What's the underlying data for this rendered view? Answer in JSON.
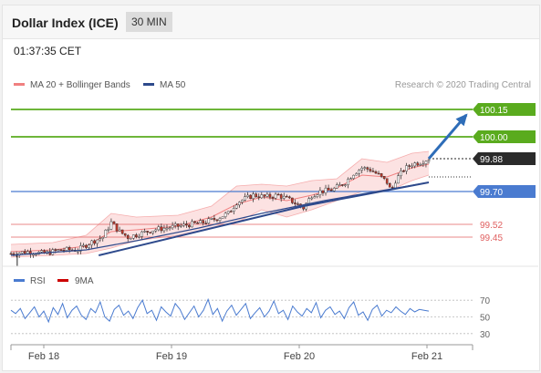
{
  "header": {
    "title": "Dollar Index (ICE)",
    "timeframe": "30 MIN"
  },
  "timestamp": "01:37:35 CET",
  "legend": {
    "ma_bb": "MA 20 + Bollinger Bands",
    "ma50": "MA 50"
  },
  "credit": "Research © 2020 Trading Central",
  "rsi_legend": {
    "rsi": "RSI",
    "ma9": "9MA"
  },
  "colors": {
    "bb": "#f08080",
    "bb_fill": "#fbd5d5",
    "ma50": "#2e4a8c",
    "resistance": "#5aab1e",
    "support": "#4a7bd0",
    "target": "#e06060",
    "candle_up": "#ffffff",
    "candle_down": "#c0392b",
    "arrow": "#2e6db8",
    "rsi_line": "#4a7bd0",
    "rsi_ma": "#cc0000"
  },
  "chart_data": [
    {
      "type": "candlestick",
      "x_ticks": [
        "Feb 18",
        "Feb 19",
        "Feb 20",
        "Feb 21"
      ],
      "ylim": [
        99.3,
        100.25
      ],
      "levels": [
        {
          "label": "100.15",
          "value": 100.15,
          "kind": "resistance"
        },
        {
          "label": "100.00",
          "value": 100.0,
          "kind": "resistance"
        },
        {
          "label": "99.88",
          "value": 99.88,
          "kind": "last"
        },
        {
          "label": "99.70",
          "value": 99.7,
          "kind": "support"
        },
        {
          "label": "99.52",
          "value": 99.52,
          "kind": "target"
        },
        {
          "label": "99.45",
          "value": 99.45,
          "kind": "target"
        }
      ],
      "price_path": [
        [
          0,
          99.36
        ],
        [
          4,
          99.37
        ],
        [
          8,
          99.36
        ],
        [
          12,
          99.38
        ],
        [
          16,
          99.38
        ],
        [
          19,
          99.42
        ],
        [
          22,
          99.45
        ],
        [
          24,
          99.53
        ],
        [
          26,
          99.48
        ],
        [
          28,
          99.45
        ],
        [
          31,
          99.47
        ],
        [
          34,
          99.49
        ],
        [
          37,
          99.5
        ],
        [
          40,
          99.51
        ],
        [
          43,
          99.52
        ],
        [
          46,
          99.53
        ],
        [
          49,
          99.55
        ],
        [
          52,
          99.58
        ],
        [
          54,
          99.64
        ],
        [
          56,
          99.66
        ],
        [
          58,
          99.68
        ],
        [
          61,
          99.67
        ],
        [
          64,
          99.68
        ],
        [
          67,
          99.65
        ],
        [
          70,
          99.61
        ],
        [
          72,
          99.68
        ],
        [
          74,
          99.7
        ],
        [
          77,
          99.71
        ],
        [
          80,
          99.75
        ],
        [
          82,
          99.8
        ],
        [
          84,
          99.83
        ],
        [
          86,
          99.82
        ],
        [
          88,
          99.79
        ],
        [
          90,
          99.75
        ],
        [
          91,
          99.7
        ],
        [
          92,
          99.76
        ],
        [
          94,
          99.82
        ],
        [
          96,
          99.85
        ],
        [
          98,
          99.86
        ],
        [
          100,
          99.88
        ]
      ],
      "bb_upper": [
        [
          0,
          99.41
        ],
        [
          10,
          99.42
        ],
        [
          18,
          99.46
        ],
        [
          24,
          99.58
        ],
        [
          30,
          99.56
        ],
        [
          40,
          99.57
        ],
        [
          48,
          99.62
        ],
        [
          54,
          99.73
        ],
        [
          60,
          99.74
        ],
        [
          66,
          99.73
        ],
        [
          72,
          99.76
        ],
        [
          78,
          99.77
        ],
        [
          84,
          99.88
        ],
        [
          90,
          99.86
        ],
        [
          96,
          99.91
        ],
        [
          100,
          99.92
        ]
      ],
      "bb_lower": [
        [
          0,
          99.34
        ],
        [
          10,
          99.35
        ],
        [
          18,
          99.36
        ],
        [
          24,
          99.39
        ],
        [
          30,
          99.43
        ],
        [
          40,
          99.46
        ],
        [
          48,
          99.5
        ],
        [
          54,
          99.53
        ],
        [
          60,
          99.6
        ],
        [
          66,
          99.56
        ],
        [
          72,
          99.6
        ],
        [
          78,
          99.65
        ],
        [
          84,
          99.7
        ],
        [
          90,
          99.7
        ],
        [
          96,
          99.76
        ],
        [
          100,
          99.79
        ]
      ],
      "ma20": [
        [
          0,
          99.37
        ],
        [
          10,
          99.38
        ],
        [
          18,
          99.4
        ],
        [
          24,
          99.48
        ],
        [
          30,
          99.49
        ],
        [
          40,
          99.51
        ],
        [
          48,
          99.56
        ],
        [
          54,
          99.63
        ],
        [
          60,
          99.67
        ],
        [
          66,
          99.65
        ],
        [
          72,
          99.68
        ],
        [
          78,
          99.72
        ],
        [
          84,
          99.79
        ],
        [
          90,
          99.78
        ],
        [
          96,
          99.83
        ],
        [
          100,
          99.85
        ]
      ],
      "ma50": [
        [
          0,
          99.35
        ],
        [
          18,
          99.38
        ],
        [
          30,
          99.43
        ],
        [
          45,
          99.5
        ],
        [
          60,
          99.58
        ],
        [
          75,
          99.65
        ],
        [
          90,
          99.71
        ],
        [
          100,
          99.75
        ]
      ],
      "trendline": [
        [
          21,
          99.35
        ],
        [
          70,
          99.62
        ],
        [
          100,
          99.75
        ]
      ],
      "arrow": {
        "from": [
          100,
          99.88
        ],
        "to": [
          109,
          100.12
        ]
      }
    },
    {
      "type": "line",
      "name": "RSI",
      "y_ticks": [
        "70",
        "50",
        "30"
      ],
      "ylim": [
        20,
        80
      ],
      "rsi": [
        58,
        54,
        60,
        48,
        55,
        62,
        50,
        57,
        44,
        61,
        53,
        66,
        49,
        58,
        63,
        52,
        47,
        60,
        55,
        68,
        50,
        45,
        59,
        64,
        52,
        57,
        48,
        61,
        70,
        54,
        58,
        46,
        62,
        56,
        51,
        66,
        59,
        47,
        55,
        63,
        50,
        58,
        71,
        53,
        60,
        45,
        57,
        64,
        52,
        59,
        66,
        48,
        55,
        61,
        50,
        57,
        69,
        54,
        58,
        47,
        63,
        56,
        51,
        60,
        55,
        67,
        49,
        58,
        62,
        53,
        57,
        48,
        61,
        68,
        52,
        56,
        46,
        59,
        64,
        51,
        58,
        55,
        62,
        57,
        53,
        60,
        56,
        59,
        58,
        57
      ],
      "rsi_ma": [
        57,
        57,
        57,
        57,
        57,
        57,
        57,
        57,
        57,
        57
      ]
    }
  ]
}
